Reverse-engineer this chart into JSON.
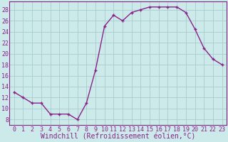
{
  "x": [
    0,
    1,
    2,
    3,
    4,
    5,
    6,
    7,
    8,
    9,
    10,
    11,
    12,
    13,
    14,
    15,
    16,
    17,
    18,
    19,
    20,
    21,
    22,
    23
  ],
  "y": [
    13,
    12,
    11,
    11,
    9,
    9,
    9,
    8,
    11,
    17,
    25,
    27,
    26,
    27.5,
    28,
    28.5,
    28.5,
    28.5,
    28.5,
    27.5,
    24.5,
    21,
    19,
    18
  ],
  "line_color": "#882288",
  "marker": "+",
  "marker_size": 3.5,
  "linewidth": 1.0,
  "xlabel": "Windchill (Refroidissement éolien,°C)",
  "xlim": [
    -0.5,
    23.5
  ],
  "ylim": [
    7,
    29.5
  ],
  "yticks": [
    8,
    10,
    12,
    14,
    16,
    18,
    20,
    22,
    24,
    26,
    28
  ],
  "xticks": [
    0,
    1,
    2,
    3,
    4,
    5,
    6,
    7,
    8,
    9,
    10,
    11,
    12,
    13,
    14,
    15,
    16,
    17,
    18,
    19,
    20,
    21,
    22,
    23
  ],
  "bg_color": "#cceaea",
  "grid_color": "#aacccc",
  "xlabel_fontsize": 7,
  "tick_fontsize": 6,
  "spine_color": "#882288"
}
